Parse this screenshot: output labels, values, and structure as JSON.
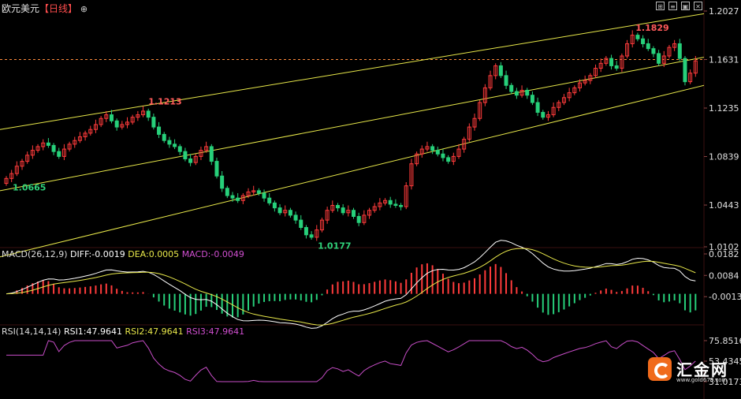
{
  "header": {
    "symbol": "欧元美元",
    "period": "【日线】",
    "crosshair_icon": "crosshair-icon"
  },
  "window_controls": [
    "pin-icon",
    "settings-icon",
    "maximize-icon",
    "close-icon"
  ],
  "colors": {
    "up": "#ff3b3b",
    "down": "#27d07a",
    "channel": "#e8e84a",
    "macd_diff": "#ffffff",
    "macd_dea": "#e8e84a",
    "macd_label": "#d14fd1",
    "rsi": "#c94ec9",
    "price_line": "#ff8c3c",
    "grid": "#3a1010"
  },
  "chart_data": [
    {
      "type": "candlestick",
      "ylim": [
        1.0102,
        1.2027
      ],
      "y_ticks": [
        "1.2027",
        "1.1631",
        "1.1235",
        "1.0839",
        "1.0443",
        "1.0102"
      ],
      "current_price": 1.1631,
      "annotations": [
        {
          "text": "1.1213",
          "value": 1.1213,
          "type": "high"
        },
        {
          "text": "1.0665",
          "value": 1.0665,
          "type": "low"
        },
        {
          "text": "1.0177",
          "value": 1.0177,
          "type": "low"
        },
        {
          "text": "1.1829",
          "value": 1.1829,
          "type": "high"
        }
      ],
      "close_series": [
        1.066,
        1.07,
        1.076,
        1.08,
        1.085,
        1.089,
        1.092,
        1.095,
        1.093,
        1.088,
        1.084,
        1.09,
        1.094,
        1.097,
        1.1,
        1.103,
        1.106,
        1.11,
        1.115,
        1.118,
        1.113,
        1.108,
        1.11,
        1.112,
        1.116,
        1.118,
        1.121,
        1.116,
        1.108,
        1.102,
        1.097,
        1.094,
        1.092,
        1.088,
        1.082,
        1.079,
        1.084,
        1.089,
        1.092,
        1.08,
        1.068,
        1.058,
        1.052,
        1.05,
        1.048,
        1.052,
        1.055,
        1.056,
        1.054,
        1.05,
        1.046,
        1.042,
        1.038,
        1.04,
        1.036,
        1.032,
        1.026,
        1.02,
        1.018,
        1.024,
        1.032,
        1.04,
        1.044,
        1.042,
        1.038,
        1.04,
        1.035,
        1.03,
        1.036,
        1.04,
        1.043,
        1.046,
        1.048,
        1.045,
        1.044,
        1.043,
        1.06,
        1.078,
        1.086,
        1.09,
        1.092,
        1.089,
        1.086,
        1.083,
        1.08,
        1.084,
        1.09,
        1.098,
        1.108,
        1.115,
        1.128,
        1.14,
        1.15,
        1.158,
        1.15,
        1.142,
        1.137,
        1.134,
        1.138,
        1.134,
        1.128,
        1.12,
        1.116,
        1.118,
        1.124,
        1.128,
        1.132,
        1.136,
        1.14,
        1.144,
        1.146,
        1.15,
        1.156,
        1.16,
        1.164,
        1.158,
        1.156,
        1.166,
        1.176,
        1.183,
        1.18,
        1.176,
        1.172,
        1.168,
        1.16,
        1.166,
        1.173,
        1.176,
        1.164,
        1.145,
        1.152,
        1.162
      ]
    },
    {
      "type": "bar+line",
      "title": "MACD(26,12,9)",
      "labels": {
        "diff": "DIFF:-0.0019",
        "dea": "DEA:0.0005",
        "macd": "MACD:-0.0049"
      },
      "ylim": [
        -0.012,
        0.0182
      ],
      "y_ticks": [
        "0.0182",
        "0.0084",
        "-0.0013"
      ]
    },
    {
      "type": "line",
      "title": "RSI(14,14,14)",
      "labels": {
        "rsi1": "RSI1:47.9641",
        "rsi2": "RSI2:47.9641",
        "rsi3": "RSI3:47.9641"
      },
      "ylim": [
        31.0173,
        75.8516
      ],
      "y_ticks": [
        "75.8516",
        "53.4345",
        "31.0173"
      ]
    }
  ],
  "logo": {
    "name": "汇金网",
    "url": "www.gold678.com"
  }
}
